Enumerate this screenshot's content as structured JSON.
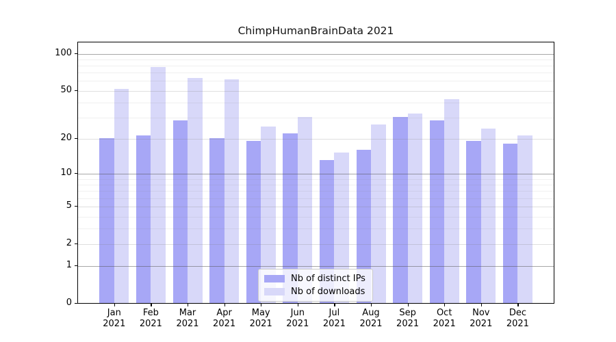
{
  "figure": {
    "title": "ChimpHumanBrainData 2021"
  },
  "chart_data": {
    "type": "bar",
    "title": "ChimpHumanBrainData 2021",
    "categories": [
      "Jan",
      "Feb",
      "Mar",
      "Apr",
      "May",
      "Jun",
      "Jul",
      "Aug",
      "Sep",
      "Oct",
      "Nov",
      "Dec"
    ],
    "category_year": "2021",
    "series": [
      {
        "name": "Nb of distinct IPs",
        "color": "#a7a7f6",
        "values": [
          20,
          21,
          28,
          20,
          19,
          22,
          13,
          16,
          30,
          28,
          19,
          18
        ]
      },
      {
        "name": "Nb of downloads",
        "color": "#d8d8f9",
        "values": [
          51,
          77,
          63,
          61,
          25,
          30,
          15,
          26,
          32,
          42,
          24,
          21
        ]
      }
    ],
    "y_axis": {
      "scale": "symlog-log1p",
      "major_ticks": [
        0,
        1,
        2,
        5,
        10,
        20,
        50,
        100
      ],
      "strong_grid_ticks": [
        1,
        10,
        100
      ],
      "minor_ticks": [
        3,
        4,
        6,
        7,
        8,
        9,
        30,
        40,
        60,
        70,
        80,
        90
      ],
      "range_max": 125
    },
    "legend": {
      "position": "lower center"
    },
    "grid": true
  },
  "colors": {
    "bar_distinct_ips": "#a7a7f6",
    "bar_downloads": "#d8d8f9",
    "spine": "#000000",
    "grid_strong": "rgba(80,80,80,0.50)",
    "grid_major": "rgba(128,128,128,0.25)",
    "grid_minor": "rgba(128,128,128,0.12)"
  }
}
